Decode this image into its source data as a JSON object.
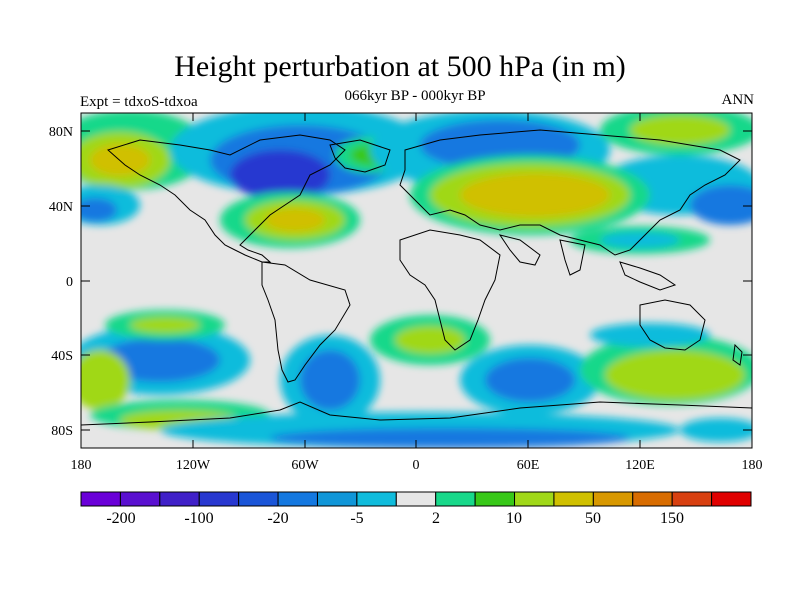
{
  "title": "Height perturbation at 500 hPa (in m)",
  "subtitle": "066kyr BP - 000kyr BP",
  "left_label": "Expt = tdxoS-tdxoa",
  "right_label": "ANN",
  "lat_ticks": [
    "80N",
    "40N",
    "0",
    "40S",
    "80S"
  ],
  "lon_ticks": [
    "180",
    "120W",
    "60W",
    "0",
    "60E",
    "120E",
    "180"
  ],
  "colorbar": {
    "colors": [
      "#6a00d8",
      "#5a10d0",
      "#4020c8",
      "#2838d0",
      "#1a55d8",
      "#1478e0",
      "#1096d8",
      "#10bcdc",
      "#e6e6e6",
      "#18d88a",
      "#38c818",
      "#a0d818",
      "#d0c000",
      "#d89800",
      "#d86c00",
      "#d84010",
      "#e00000"
    ],
    "labels": [
      "-200",
      "-100",
      "-20",
      "-5",
      "2",
      "10",
      "50",
      "150"
    ]
  },
  "map_colors": {
    "background": "#e6e6e6",
    "land_outline": "#000000"
  }
}
